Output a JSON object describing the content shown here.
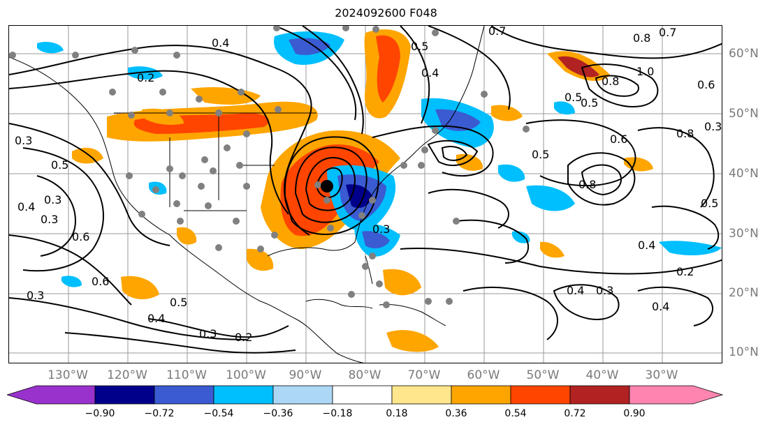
{
  "title": "2024092600 F048",
  "map": {
    "lon_labels": [
      "130°W",
      "120°W",
      "110°W",
      "100°W",
      "90°W",
      "80°W",
      "70°W",
      "60°W",
      "50°W",
      "40°W",
      "30°W"
    ],
    "lat_labels": [
      "60°N",
      "50°N",
      "40°N",
      "30°N",
      "20°N",
      "10°N"
    ],
    "contour_labels": [
      "0.4",
      "0.2",
      "0.3",
      "0.5",
      "0.3",
      "0.4",
      "0.6",
      "0.3",
      "0.5",
      "0.4",
      "0.3",
      "0.2",
      "0.7",
      "0.5",
      "0.8",
      "0.4",
      "1.0",
      "0.8",
      "0.7",
      "0.6",
      "0.5",
      "0.8",
      "0.6",
      "0.4",
      "0.3",
      "0.2",
      "0.4",
      "0.3",
      "0.4",
      "0.5",
      "0.5",
      "0.8",
      "0.3",
      "0.6",
      "0.5",
      "0.3"
    ],
    "storm_marker": "black-dot"
  },
  "colorbar": {
    "ticks": [
      "−0.90",
      "−0.72",
      "−0.54",
      "−0.36",
      "−0.18",
      "0.18",
      "0.36",
      "0.54",
      "0.72",
      "0.90"
    ],
    "colors": [
      "#9932cc",
      "#00008b",
      "#3a5bd1",
      "#00bfff",
      "#add8f5",
      "#ffffff",
      "#ffe68c",
      "#ffa500",
      "#ff4500",
      "#b22222",
      "#ff85b0"
    ]
  }
}
